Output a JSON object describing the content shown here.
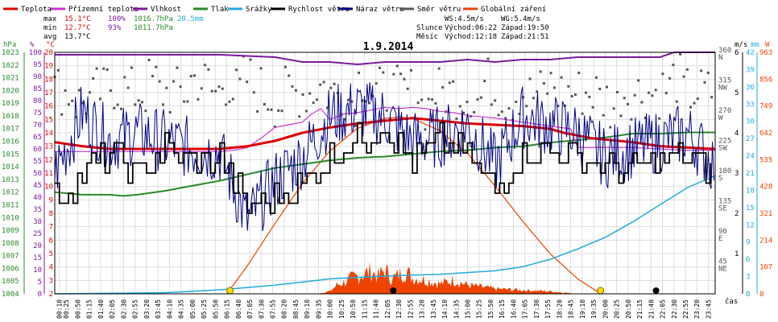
{
  "legend": [
    {
      "label": "Teplota",
      "color": "#e00000"
    },
    {
      "label": "Přízemní teplota",
      "color": "#cc33cc"
    },
    {
      "label": "Vlhkost",
      "color": "#7a1a9a"
    },
    {
      "label": "Tlak",
      "color": "#2a8a2a"
    },
    {
      "label": "Srážky",
      "color": "#22aadd"
    },
    {
      "label": "Rychlost větru",
      "color": "#000000"
    },
    {
      "label": "Náraz větru",
      "color": "#000088"
    },
    {
      "label": "Směr větru",
      "color": "#555555"
    },
    {
      "label": "Globální záření",
      "color": "#ee4400"
    }
  ],
  "stats": {
    "max_label": "max",
    "max_temp": "15.1°C",
    "max_hum": "100%",
    "max_press": "1016.7hPa",
    "rain_total": "20.5mm",
    "min_label": "min",
    "min_temp": "12.7°C",
    "min_hum": "93%",
    "min_press": "1011.7hPa",
    "avg_label": "avg",
    "avg_temp": "13.7°C"
  },
  "wind_summary": {
    "ws": "WS:4.5m/s",
    "wg": "WG:5.4m/s"
  },
  "sun": {
    "label": "Slunce",
    "rise": "Východ:06:22",
    "set": "Západ:19:50"
  },
  "moon": {
    "label": "Měsíc",
    "rise": "Východ:12:18",
    "set": "Západ:21:51"
  },
  "title": "1.9.2014",
  "axes": {
    "hpa_unit": "hPa",
    "pct_unit": "%",
    "c_unit": "°C",
    "dir_unit": "m/s",
    "rain_unit": "mm",
    "rad_unit": "W",
    "time_unit": "čas",
    "hpa_ticks": [
      1004,
      1005,
      1006,
      1007,
      1008,
      1009,
      1010,
      1011,
      1012,
      1013,
      1014,
      1015,
      1016,
      1017,
      1018,
      1019,
      1020,
      1021,
      1022,
      1023
    ],
    "pct_ticks": [
      0,
      5,
      10,
      15,
      20,
      25,
      30,
      35,
      40,
      45,
      50,
      55,
      60,
      65,
      70,
      75,
      80,
      85,
      90,
      95,
      100
    ],
    "c_ticks": [
      2,
      3,
      4,
      5,
      6,
      7,
      8,
      9,
      10,
      11,
      12,
      13,
      14,
      15,
      16,
      17,
      18,
      19,
      20
    ],
    "dir_ticks": [
      {
        "deg": "45",
        "code": "NE"
      },
      {
        "deg": "90",
        "code": "E"
      },
      {
        "deg": "135",
        "code": "SE"
      },
      {
        "deg": "180",
        "code": "S"
      },
      {
        "deg": "225",
        "code": "SW"
      },
      {
        "deg": "270",
        "code": "W"
      },
      {
        "deg": "315",
        "code": "NW"
      },
      {
        "deg": "360",
        "code": "N"
      }
    ],
    "ms_ticks": [
      1,
      2,
      3,
      4,
      5,
      6
    ],
    "rain_ticks": [
      0,
      3,
      6,
      9,
      12,
      15,
      18,
      21,
      24,
      27,
      30,
      33,
      36,
      39,
      42
    ],
    "rad_ticks": [
      0,
      107,
      214,
      321,
      428,
      535,
      642,
      749,
      856,
      963
    ],
    "time_ticks": [
      "00:10",
      "00:25",
      "00:50",
      "01:15",
      "01:40",
      "02:05",
      "02:30",
      "02:55",
      "03:20",
      "03:45",
      "04:10",
      "04:35",
      "05:00",
      "05:25",
      "05:50",
      "06:15",
      "06:40",
      "07:05",
      "07:30",
      "07:55",
      "08:20",
      "08:45",
      "09:10",
      "09:35",
      "10:00",
      "10:25",
      "10:50",
      "11:15",
      "11:40",
      "12:05",
      "12:30",
      "12:55",
      "13:20",
      "13:45",
      "14:10",
      "14:35",
      "15:00",
      "15:25",
      "15:50",
      "16:15",
      "16:40",
      "17:05",
      "17:30",
      "17:55",
      "18:20",
      "18:45",
      "19:10",
      "19:35",
      "20:00",
      "20:25",
      "20:50",
      "21:15",
      "21:40",
      "22:05",
      "22:30",
      "22:55",
      "23:20",
      "23:45"
    ]
  },
  "chart_data": {
    "type": "line",
    "title": "1.9.2014",
    "x_range": [
      "00:00",
      "24:00"
    ],
    "series": [
      {
        "name": "Teplota",
        "unit": "°C",
        "color": "#e00000",
        "x": [
          "00:00",
          "01:00",
          "02:00",
          "03:00",
          "04:00",
          "05:00",
          "06:00",
          "06:30",
          "07:00",
          "07:30",
          "08:00",
          "08:30",
          "09:00",
          "09:30",
          "10:00",
          "11:00",
          "12:00",
          "13:00",
          "14:00",
          "15:00",
          "16:00",
          "17:00",
          "18:00",
          "18:30",
          "19:00",
          "19:30",
          "20:00",
          "21:00",
          "22:00",
          "23:00",
          "23:59"
        ],
        "y": [
          13.3,
          13.0,
          12.8,
          12.8,
          12.8,
          12.8,
          12.8,
          12.9,
          13.0,
          13.2,
          13.4,
          13.7,
          14.0,
          14.2,
          14.4,
          14.7,
          14.9,
          15.1,
          14.9,
          14.7,
          14.6,
          14.5,
          14.3,
          14.0,
          13.8,
          13.6,
          13.5,
          13.3,
          13.0,
          12.9,
          12.8
        ]
      },
      {
        "name": "Přízemní teplota",
        "unit": "°C",
        "color": "#cc33cc",
        "x": [
          "00:00",
          "02:00",
          "04:00",
          "06:00",
          "06:30",
          "07:00",
          "07:30",
          "08:00",
          "08:30",
          "09:00",
          "09:20",
          "09:40",
          "10:00",
          "10:30",
          "11:00",
          "11:30",
          "12:00",
          "12:30",
          "13:00",
          "13:30",
          "14:00",
          "14:30",
          "15:00",
          "16:00",
          "17:00",
          "18:00",
          "18:45",
          "19:00",
          "20:00",
          "21:00",
          "22:00",
          "23:00",
          "23:59"
        ],
        "y": [
          12.6,
          12.6,
          12.6,
          12.6,
          12.7,
          12.9,
          13.6,
          14.4,
          14.6,
          14.8,
          15.4,
          15.8,
          15.0,
          15.4,
          15.5,
          15.7,
          15.9,
          15.8,
          15.9,
          15.8,
          15.6,
          15.5,
          15.3,
          15.1,
          14.8,
          14.5,
          14.3,
          12.9,
          12.9,
          12.9,
          12.8,
          12.7,
          12.7
        ]
      },
      {
        "name": "Vlhkost",
        "unit": "%",
        "color": "#7a1a9a",
        "x": [
          "00:00",
          "02:00",
          "04:00",
          "06:00",
          "08:00",
          "09:00",
          "10:00",
          "11:00",
          "12:00",
          "13:00",
          "14:00",
          "15:00",
          "16:00",
          "17:00",
          "18:00",
          "19:00",
          "20:00",
          "21:00",
          "22:00",
          "22:30",
          "23:00",
          "23:59"
        ],
        "y": [
          99,
          99,
          99,
          99,
          98,
          96,
          96,
          95,
          96,
          96,
          96,
          97,
          96,
          97,
          97,
          98,
          98,
          98,
          98,
          100,
          100,
          100
        ]
      },
      {
        "name": "Tlak",
        "unit": "hPa",
        "color": "#2a8a2a",
        "x": [
          "00:00",
          "00:30",
          "01:00",
          "01:30",
          "02:00",
          "02:30",
          "03:00",
          "04:00",
          "05:00",
          "06:00",
          "07:00",
          "08:00",
          "09:00",
          "10:00",
          "11:00",
          "12:00",
          "13:00",
          "14:00",
          "15:00",
          "16:00",
          "17:00",
          "18:00",
          "19:00",
          "20:00",
          "21:00",
          "22:00",
          "23:00",
          "23:59"
        ],
        "y": [
          1012.0,
          1011.9,
          1011.8,
          1011.8,
          1011.8,
          1011.7,
          1011.8,
          1012.1,
          1012.5,
          1012.9,
          1013.4,
          1013.9,
          1014.2,
          1014.5,
          1014.7,
          1014.8,
          1015.0,
          1015.2,
          1015.3,
          1015.5,
          1015.6,
          1015.9,
          1016.1,
          1016.3,
          1016.6,
          1016.6,
          1016.7,
          1016.7
        ]
      },
      {
        "name": "Srážky",
        "unit": "mm",
        "color": "#22aadd",
        "x": [
          "00:00",
          "04:00",
          "06:00",
          "08:00",
          "10:00",
          "12:00",
          "14:00",
          "16:00",
          "17:00",
          "18:00",
          "19:00",
          "20:00",
          "21:00",
          "22:00",
          "23:00",
          "23:59"
        ],
        "y": [
          0.0,
          0.2,
          0.7,
          1.5,
          2.6,
          3.1,
          3.4,
          4.0,
          4.7,
          6.0,
          7.8,
          9.8,
          12.5,
          15.5,
          18.5,
          20.5
        ]
      },
      {
        "name": "Rychlost větru",
        "unit": "m/s",
        "color": "#000000",
        "x": [
          "00:00",
          "01:00",
          "02:00",
          "03:00",
          "04:00",
          "05:00",
          "06:00",
          "07:00",
          "08:00",
          "09:00",
          "10:00",
          "11:00",
          "12:00",
          "13:00",
          "14:00",
          "15:00",
          "16:00",
          "17:00",
          "18:00",
          "19:00",
          "20:00",
          "21:00",
          "22:00",
          "23:00",
          "23:59"
        ],
        "y": [
          2.3,
          3.0,
          3.4,
          3.0,
          3.6,
          3.2,
          3.4,
          2.2,
          2.4,
          2.7,
          3.5,
          3.8,
          4.2,
          3.2,
          3.8,
          3.4,
          2.6,
          3.4,
          3.6,
          3.3,
          3.2,
          3.1,
          3.3,
          3.4,
          3.0
        ]
      },
      {
        "name": "Náraz větru",
        "unit": "m/s",
        "color": "#000088",
        "x": [
          "00:00",
          "01:00",
          "02:00",
          "03:00",
          "04:00",
          "05:00",
          "06:00",
          "07:00",
          "08:00",
          "09:00",
          "10:00",
          "11:00",
          "12:00",
          "13:00",
          "14:00",
          "15:00",
          "16:00",
          "17:00",
          "18:00",
          "19:00",
          "20:00",
          "21:00",
          "22:00",
          "23:00",
          "23:59"
        ],
        "y": [
          3.0,
          4.5,
          3.8,
          4.0,
          3.8,
          3.6,
          3.5,
          1.8,
          2.8,
          3.4,
          4.4,
          4.6,
          4.4,
          3.8,
          3.9,
          4.2,
          3.2,
          4.4,
          4.2,
          4.0,
          3.4,
          3.6,
          3.8,
          4.0,
          3.2
        ]
      },
      {
        "name": "Globální záření",
        "unit": "W",
        "color": "#ee4400",
        "x": [
          "06:15",
          "07:00",
          "08:00",
          "09:00",
          "10:00",
          "11:00",
          "12:00",
          "12:30",
          "13:00",
          "14:00",
          "15:00",
          "16:00",
          "17:00",
          "18:00",
          "19:00",
          "19:50"
        ],
        "y": [
          0,
          112,
          280,
          440,
          570,
          660,
          700,
          705,
          700,
          650,
          560,
          430,
          290,
          160,
          60,
          0
        ]
      }
    ],
    "wind_direction_deg": [
      305,
      300,
      285,
      290,
      300,
      310,
      305,
      300,
      300,
      315,
      300,
      300,
      300,
      320,
      315,
      300,
      315,
      300,
      320,
      305,
      295,
      285,
      300,
      300,
      300,
      310,
      300,
      300,
      290,
      320,
      300,
      300,
      300,
      300,
      300,
      280,
      300,
      300,
      300,
      300,
      290,
      315,
      300,
      290,
      300,
      295,
      300,
      310,
      300,
      300,
      300,
      300,
      290,
      280,
      300,
      300,
      300,
      300,
      305,
      320,
      300,
      300,
      300
    ],
    "radiation_measured_W": [
      0,
      0,
      0,
      0,
      0,
      0,
      10,
      35,
      45,
      60,
      70,
      80,
      90,
      70,
      95,
      60,
      75,
      90,
      65,
      55,
      40,
      55,
      35,
      20,
      15,
      10,
      5,
      0
    ],
    "radiation_measured_x": [
      "07:00",
      "07:30",
      "08:00",
      "08:30",
      "09:00",
      "09:30",
      "10:00",
      "10:15",
      "10:30",
      "10:45",
      "11:00",
      "11:15",
      "11:30",
      "11:45",
      "12:00",
      "12:15",
      "12:30",
      "12:45",
      "13:00",
      "13:30",
      "14:00",
      "14:30",
      "15:00",
      "16:00",
      "17:00",
      "18:00",
      "18:30",
      "19:00"
    ],
    "markers": {
      "sun_rise": "06:22",
      "sun_set": "19:50",
      "moon_rise": "12:18",
      "moon_set": "21:51"
    },
    "axes": {
      "pressure_hPa": [
        1004,
        1023
      ],
      "humidity_pct": [
        0,
        100
      ],
      "temperature_C": [
        2,
        20
      ],
      "wind_ms": [
        0,
        6
      ],
      "direction_deg": [
        0,
        360
      ],
      "rain_mm": [
        0,
        42
      ],
      "radiation_W": [
        0,
        963
      ]
    }
  }
}
